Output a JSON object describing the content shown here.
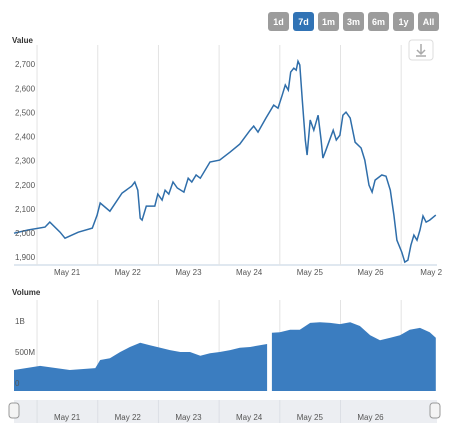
{
  "range_selector": {
    "buttons": [
      "1d",
      "7d",
      "1m",
      "3m",
      "6m",
      "1y",
      "All"
    ],
    "selected": "7d"
  },
  "chart_data": [
    {
      "type": "line",
      "title": "Value",
      "color": "#2f6eaa",
      "xlim": [
        20.62,
        27.59
      ],
      "xticks": [
        {
          "value": 21,
          "label": "May 21"
        },
        {
          "value": 22,
          "label": "May 22"
        },
        {
          "value": 23,
          "label": "May 23"
        },
        {
          "value": 24,
          "label": "May 24"
        },
        {
          "value": 25,
          "label": "May 25"
        },
        {
          "value": 26,
          "label": "May 26"
        },
        {
          "value": 27,
          "label": "May 2"
        }
      ],
      "ylim": [
        1888,
        2800
      ],
      "yticks": [
        {
          "value": 1900,
          "label": "1,900"
        },
        {
          "value": 2000,
          "label": "2,000"
        },
        {
          "value": 2100,
          "label": "2,100"
        },
        {
          "value": 2200,
          "label": "2,200"
        },
        {
          "value": 2300,
          "label": "2,300"
        },
        {
          "value": 2400,
          "label": "2,400"
        },
        {
          "value": 2500,
          "label": "2,500"
        },
        {
          "value": 2600,
          "label": "2,600"
        },
        {
          "value": 2700,
          "label": "2,700"
        }
      ],
      "x": [
        20.62,
        20.85,
        21.13,
        21.21,
        21.38,
        21.46,
        21.68,
        21.91,
        21.99,
        22.04,
        22.2,
        22.4,
        22.56,
        22.61,
        22.66,
        22.7,
        22.73,
        22.8,
        22.94,
        22.99,
        23.06,
        23.11,
        23.17,
        23.24,
        23.31,
        23.42,
        23.49,
        23.55,
        23.62,
        23.69,
        23.85,
        24.01,
        24.18,
        24.34,
        24.51,
        24.57,
        24.64,
        24.77,
        24.9,
        24.97,
        25.04,
        25.09,
        25.14,
        25.18,
        25.23,
        25.27,
        25.3,
        25.33,
        25.37,
        25.42,
        25.45,
        25.5,
        25.56,
        25.63,
        25.68,
        25.71,
        25.76,
        25.88,
        25.93,
        25.99,
        26.04,
        26.09,
        26.16,
        26.24,
        26.34,
        26.4,
        26.47,
        26.52,
        26.57,
        26.68,
        26.75,
        26.82,
        26.88,
        26.93,
        27.01,
        27.06,
        27.11,
        27.16,
        27.21,
        27.26,
        27.31,
        27.36,
        27.41,
        27.47,
        27.57
      ],
      "values": [
        2020,
        2033,
        2045,
        2066,
        2024,
        1999,
        2024,
        2041,
        2095,
        2145,
        2111,
        2186,
        2215,
        2232,
        2198,
        2082,
        2074,
        2132,
        2132,
        2182,
        2157,
        2198,
        2182,
        2232,
        2207,
        2190,
        2248,
        2232,
        2261,
        2248,
        2315,
        2323,
        2356,
        2389,
        2447,
        2464,
        2439,
        2497,
        2551,
        2538,
        2592,
        2634,
        2613,
        2688,
        2704,
        2696,
        2733,
        2717,
        2571,
        2406,
        2344,
        2489,
        2447,
        2509,
        2406,
        2331,
        2364,
        2447,
        2406,
        2426,
        2509,
        2522,
        2497,
        2397,
        2373,
        2323,
        2219,
        2190,
        2240,
        2261,
        2256,
        2198,
        2095,
        1991,
        1941,
        1900,
        1908,
        1970,
        2012,
        1991,
        2033,
        2091,
        2066,
        2074,
        2095
      ]
    },
    {
      "type": "area",
      "title": "Volume",
      "color": "#3b7dc0",
      "xlim": [
        20.62,
        27.59
      ],
      "ylim": [
        -50000000,
        1420000000
      ],
      "yticks": [
        0,
        {
          "value": 500000000,
          "label": "500M"
        },
        {
          "value": 1000000000,
          "label": "1B"
        }
      ],
      "x": [
        20.62,
        21.05,
        21.54,
        21.96,
        22.04,
        22.2,
        22.37,
        22.53,
        22.7,
        22.86,
        23.03,
        23.19,
        23.36,
        23.52,
        23.69,
        23.85,
        24.01,
        24.18,
        24.34,
        24.51,
        24.67,
        24.79,
        24.82,
        24.87,
        25.0,
        25.17,
        25.33,
        25.5,
        25.66,
        25.83,
        25.99,
        26.16,
        26.32,
        26.49,
        26.65,
        26.82,
        26.98,
        27.14,
        27.31,
        27.47,
        27.57
      ],
      "values": [
        290000000,
        355000000,
        290000000,
        320000000,
        450000000,
        480000000,
        580000000,
        660000000,
        730000000,
        690000000,
        650000000,
        610000000,
        580000000,
        580000000,
        520000000,
        560000000,
        580000000,
        610000000,
        650000000,
        660000000,
        690000000,
        710000000,
        null,
        890000000,
        900000000,
        940000000,
        940000000,
        1050000000,
        1060000000,
        1050000000,
        1030000000,
        1060000000,
        1000000000,
        850000000,
        770000000,
        810000000,
        850000000,
        940000000,
        970000000,
        900000000,
        810000000
      ]
    }
  ],
  "navigator": {
    "xlim": [
      20.62,
      27.59
    ],
    "xticks": [
      {
        "value": 21,
        "label": "May 21"
      },
      {
        "value": 22,
        "label": "May 22"
      },
      {
        "value": 23,
        "label": "May 23"
      },
      {
        "value": 24,
        "label": "May 24"
      },
      {
        "value": 25,
        "label": "May 25"
      },
      {
        "value": 26,
        "label": "May 26"
      }
    ]
  }
}
